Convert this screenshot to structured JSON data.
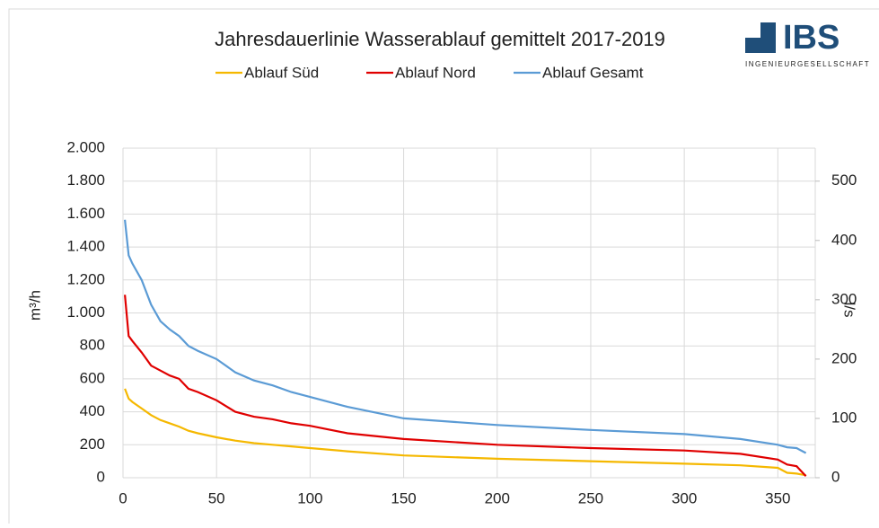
{
  "chart_data": {
    "type": "line",
    "title": "Jahresdauerlinie Wasserablauf gemittelt 2017-2019",
    "ylabel": "m³/h",
    "y2label": "l/s",
    "x": [
      1,
      3,
      5,
      10,
      15,
      20,
      25,
      30,
      35,
      40,
      50,
      60,
      70,
      80,
      90,
      100,
      120,
      150,
      200,
      250,
      300,
      330,
      350,
      355,
      360,
      365
    ],
    "series": [
      {
        "name": "Ablauf Süd",
        "color": "#f5b800",
        "values": [
          540,
          480,
          460,
          420,
          380,
          350,
          330,
          310,
          285,
          270,
          245,
          225,
          210,
          200,
          190,
          180,
          160,
          135,
          115,
          100,
          85,
          75,
          60,
          30,
          25,
          15
        ]
      },
      {
        "name": "Ablauf Nord",
        "color": "#e00000",
        "values": [
          1110,
          860,
          830,
          760,
          680,
          650,
          620,
          600,
          540,
          520,
          470,
          400,
          370,
          355,
          330,
          315,
          270,
          235,
          200,
          180,
          165,
          145,
          110,
          80,
          70,
          10
        ]
      },
      {
        "name": "Ablauf Gesamt",
        "color": "#5b9bd5",
        "values": [
          1565,
          1350,
          1300,
          1200,
          1050,
          950,
          900,
          860,
          800,
          770,
          720,
          640,
          590,
          560,
          520,
          490,
          430,
          360,
          320,
          290,
          265,
          235,
          200,
          185,
          180,
          150
        ]
      }
    ],
    "xlim": [
      0,
      370
    ],
    "xticks": [
      0,
      50,
      100,
      150,
      200,
      250,
      300,
      350
    ],
    "ylim": [
      0,
      2000
    ],
    "yticks": [
      0,
      200,
      400,
      600,
      800,
      {
        "value": 1000,
        "label": "1.000"
      },
      {
        "value": 1200,
        "label": "1.200"
      },
      {
        "value": 1400,
        "label": "1.400"
      },
      {
        "value": 1600,
        "label": "1.600"
      },
      {
        "value": 1800,
        "label": "1.800"
      },
      {
        "value": 2000,
        "label": "2.000"
      }
    ],
    "y2lim": [
      0,
      555.6
    ],
    "y2ticks": [
      0,
      100,
      200,
      300,
      400,
      500
    ],
    "grid": true,
    "legend": "top"
  },
  "logo": {
    "name": "IBS",
    "subtitle": "INGENIEURGESELLSCHAFT"
  }
}
